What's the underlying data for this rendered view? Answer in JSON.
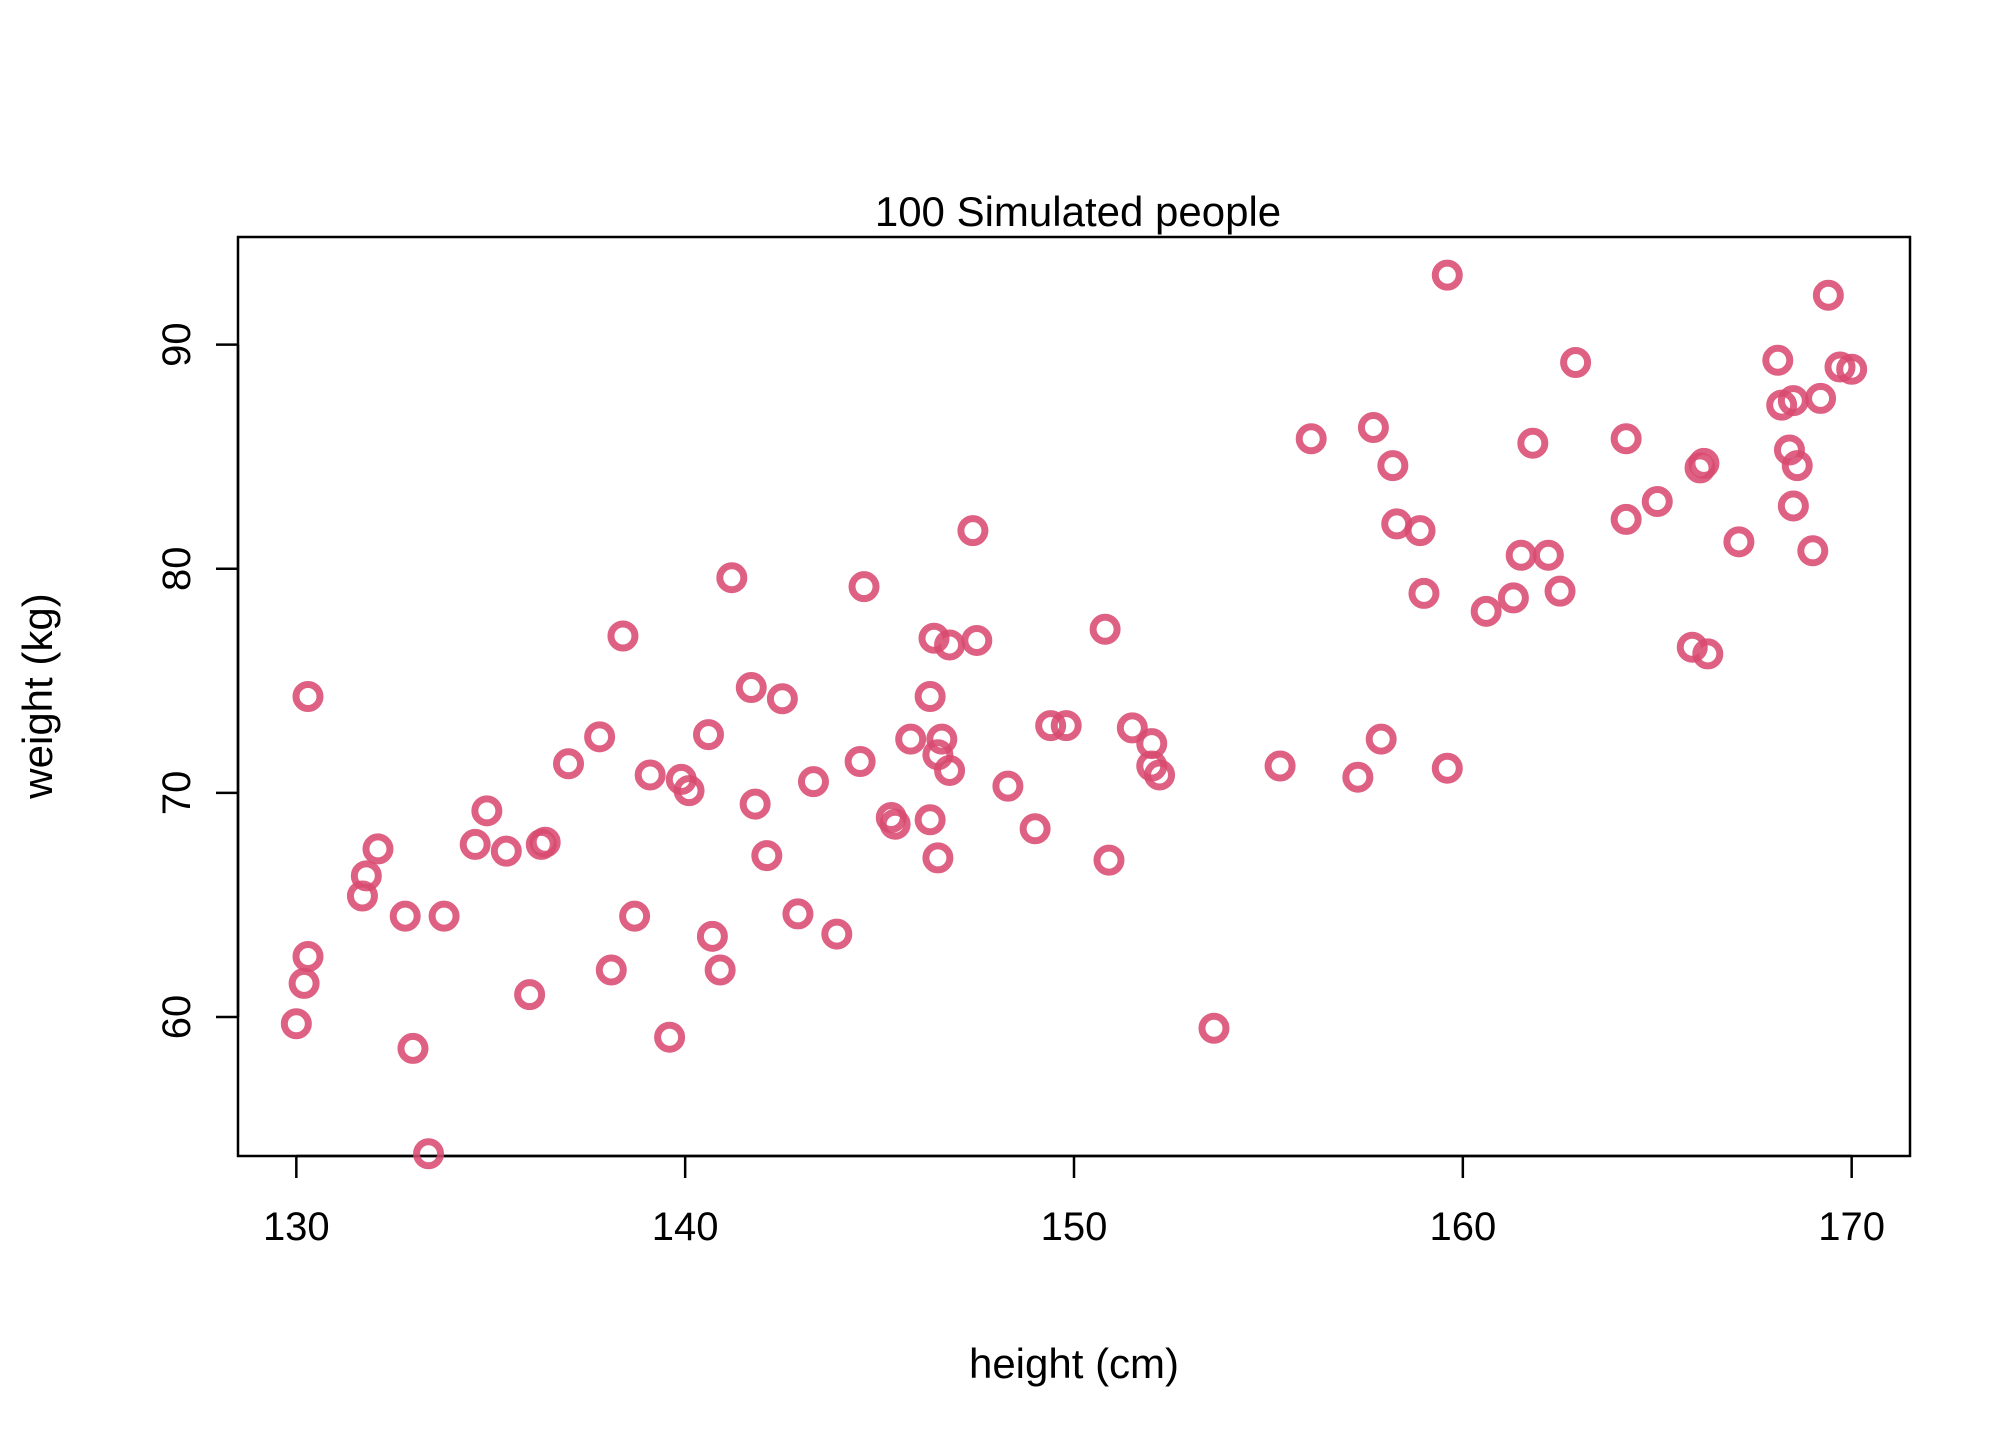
{
  "chart_data": {
    "type": "scatter",
    "title": "100 Simulated people",
    "xlabel": "height (cm)",
    "ylabel": "weight (kg)",
    "xlim": [
      128.5,
      171.5
    ],
    "ylim": [
      53.8,
      94.8
    ],
    "xticks": [
      130,
      140,
      150,
      160,
      170
    ],
    "yticks": [
      60,
      70,
      80,
      90
    ],
    "grid": false,
    "legend": "none",
    "point_color": "#d94a71",
    "points": [
      [
        130.0,
        59.7
      ],
      [
        130.2,
        61.5
      ],
      [
        130.3,
        62.7
      ],
      [
        130.3,
        74.3
      ],
      [
        131.7,
        65.4
      ],
      [
        131.8,
        66.3
      ],
      [
        132.1,
        67.5
      ],
      [
        132.8,
        64.5
      ],
      [
        133.0,
        58.6
      ],
      [
        133.4,
        53.9
      ],
      [
        133.8,
        64.5
      ],
      [
        134.6,
        67.7
      ],
      [
        134.9,
        69.2
      ],
      [
        135.4,
        67.4
      ],
      [
        136.0,
        61.0
      ],
      [
        136.3,
        67.7
      ],
      [
        136.4,
        67.8
      ],
      [
        137.0,
        71.3
      ],
      [
        137.8,
        72.5
      ],
      [
        138.1,
        62.1
      ],
      [
        138.4,
        77.0
      ],
      [
        138.7,
        64.5
      ],
      [
        139.1,
        70.8
      ],
      [
        139.6,
        59.1
      ],
      [
        139.9,
        70.6
      ],
      [
        140.1,
        70.1
      ],
      [
        140.6,
        72.6
      ],
      [
        140.7,
        63.6
      ],
      [
        140.9,
        62.1
      ],
      [
        141.2,
        79.6
      ],
      [
        141.7,
        74.7
      ],
      [
        141.8,
        69.5
      ],
      [
        142.1,
        67.2
      ],
      [
        142.5,
        74.2
      ],
      [
        142.9,
        64.6
      ],
      [
        143.3,
        70.5
      ],
      [
        143.9,
        63.7
      ],
      [
        144.5,
        71.4
      ],
      [
        144.6,
        79.2
      ],
      [
        145.3,
        68.9
      ],
      [
        145.4,
        68.6
      ],
      [
        145.8,
        72.4
      ],
      [
        146.3,
        74.3
      ],
      [
        146.3,
        68.8
      ],
      [
        146.4,
        76.9
      ],
      [
        146.5,
        67.1
      ],
      [
        146.5,
        71.7
      ],
      [
        146.6,
        72.4
      ],
      [
        146.8,
        76.6
      ],
      [
        146.8,
        71.0
      ],
      [
        147.4,
        81.7
      ],
      [
        147.5,
        76.8
      ],
      [
        148.3,
        70.3
      ],
      [
        149.0,
        68.4
      ],
      [
        149.4,
        73.0
      ],
      [
        149.8,
        73.0
      ],
      [
        150.8,
        77.3
      ],
      [
        150.9,
        67.0
      ],
      [
        151.5,
        72.9
      ],
      [
        152.0,
        72.2
      ],
      [
        152.0,
        71.2
      ],
      [
        152.2,
        70.8
      ],
      [
        153.6,
        59.5
      ],
      [
        155.3,
        71.2
      ],
      [
        156.1,
        85.8
      ],
      [
        157.3,
        70.7
      ],
      [
        157.7,
        86.3
      ],
      [
        157.9,
        72.4
      ],
      [
        158.2,
        84.6
      ],
      [
        158.3,
        82.0
      ],
      [
        158.9,
        81.7
      ],
      [
        159.0,
        78.9
      ],
      [
        159.6,
        93.1
      ],
      [
        159.6,
        71.1
      ],
      [
        160.6,
        78.1
      ],
      [
        161.3,
        78.7
      ],
      [
        161.5,
        80.6
      ],
      [
        161.8,
        85.6
      ],
      [
        162.2,
        80.6
      ],
      [
        162.5,
        79.0
      ],
      [
        162.9,
        89.2
      ],
      [
        164.2,
        85.8
      ],
      [
        164.2,
        82.2
      ],
      [
        165.0,
        83.0
      ],
      [
        165.9,
        76.5
      ],
      [
        166.1,
        84.5
      ],
      [
        166.2,
        84.7
      ],
      [
        166.3,
        76.2
      ],
      [
        167.1,
        81.2
      ],
      [
        168.1,
        89.3
      ],
      [
        168.2,
        87.3
      ],
      [
        168.4,
        85.3
      ],
      [
        168.5,
        87.5
      ],
      [
        168.6,
        84.6
      ],
      [
        168.5,
        82.8
      ],
      [
        169.0,
        80.8
      ],
      [
        169.2,
        87.6
      ],
      [
        169.4,
        92.2
      ],
      [
        169.7,
        89.0
      ],
      [
        170.0,
        88.9
      ]
    ]
  }
}
